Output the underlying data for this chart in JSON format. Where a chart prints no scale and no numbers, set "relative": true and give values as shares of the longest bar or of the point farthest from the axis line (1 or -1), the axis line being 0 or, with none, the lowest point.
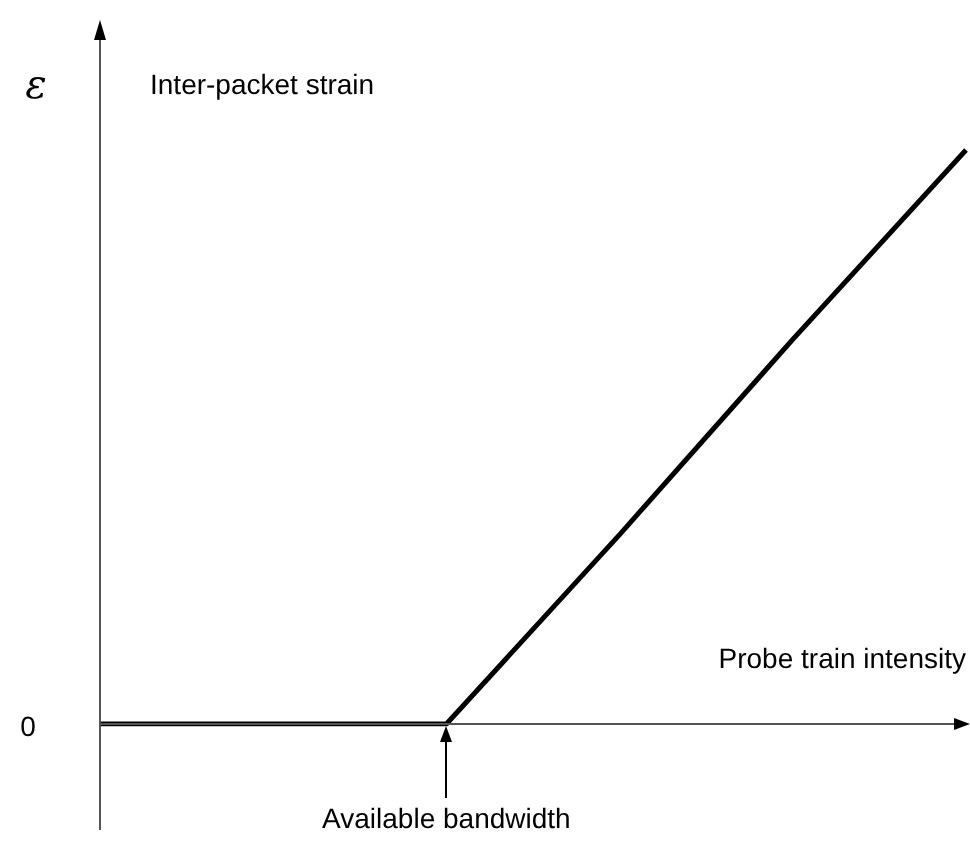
{
  "chart_data": {
    "type": "line",
    "relative": true,
    "title": "Inter-packet strain",
    "ylabel": "ε",
    "xlabel": "Probe train intensity",
    "categories": [
      null,
      null,
      null,
      null,
      null,
      null
    ],
    "series": [
      {
        "color": "#000000",
        "values": [
          0,
          0,
          0,
          0.33,
          0.67,
          1
        ]
      }
    ],
    "annotations": [
      "0",
      "Available bandwidth"
    ],
    "legend": false,
    "marker": "none",
    "line_style": "solid"
  }
}
